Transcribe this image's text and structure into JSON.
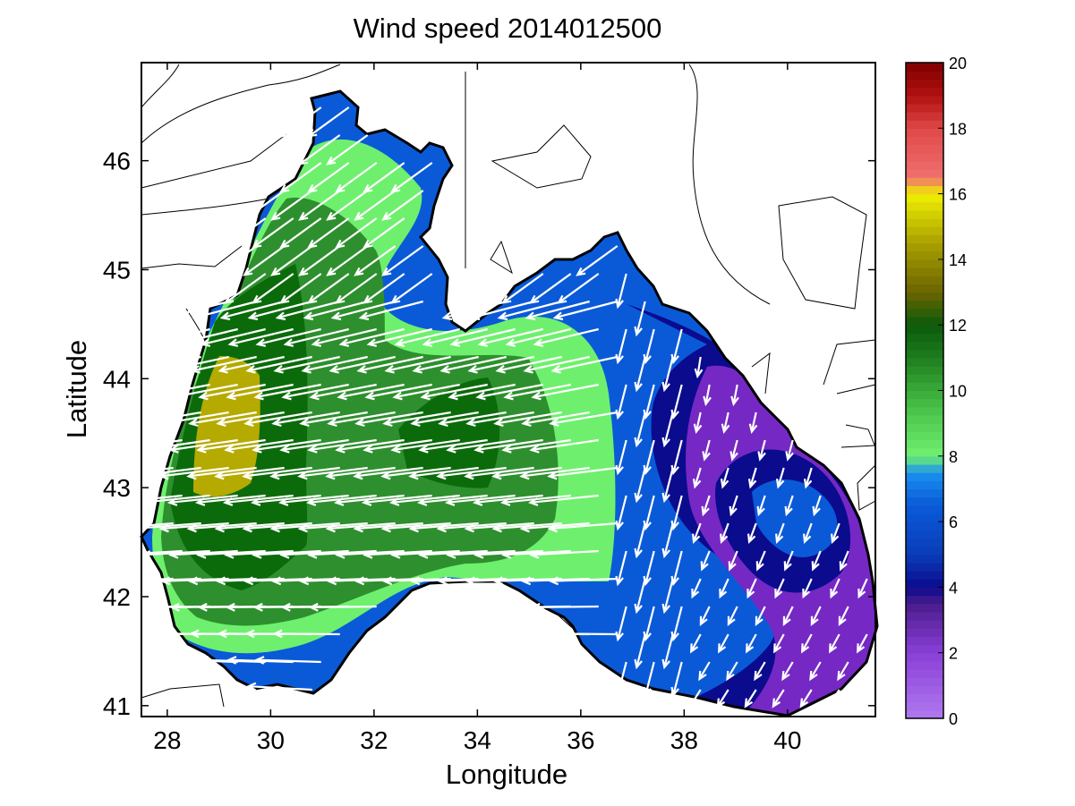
{
  "chart_data": {
    "type": "heatmap",
    "subtype": "filled contour map with wind vectors",
    "title": "Wind speed 2014012500",
    "xlabel": "Longitude",
    "ylabel": "Latitude",
    "xlim": [
      27.5,
      41.7
    ],
    "ylim": [
      40.9,
      46.9
    ],
    "xticks": [
      "28",
      "30",
      "32",
      "34",
      "36",
      "38",
      "40"
    ],
    "yticks": [
      "41",
      "42",
      "43",
      "44",
      "45",
      "46"
    ],
    "colorbar": {
      "range": [
        0,
        20
      ],
      "ticks": [
        "0",
        "2",
        "4",
        "6",
        "8",
        "10",
        "12",
        "14",
        "16",
        "18",
        "20"
      ],
      "bands": [
        {
          "from": 0,
          "to": 4,
          "color": "#7f2fc8"
        },
        {
          "from": 4,
          "to": 5,
          "color": "#0b0b8e"
        },
        {
          "from": 5,
          "to": 8,
          "color": "#0a5ad8"
        },
        {
          "from": 8,
          "to": 10,
          "color": "#6ef06e"
        },
        {
          "from": 10,
          "to": 12,
          "color": "#2e8f2e"
        },
        {
          "from": 12,
          "to": 14,
          "color": "#7f7a00"
        },
        {
          "from": 14,
          "to": 16,
          "color": "#b5ad00"
        },
        {
          "from": 16,
          "to": 18,
          "color": "#f06060"
        },
        {
          "from": 18,
          "to": 20,
          "color": "#a00000"
        }
      ]
    },
    "contour_regions": [
      {
        "level": 3,
        "color": "#7628c4",
        "area": "eastern basin (approx. 38.5–41.5 E, 41–44 N)"
      },
      {
        "level": 4,
        "color": "#0b0b8e",
        "area": "ring around eastern minimum"
      },
      {
        "level": 6,
        "color": "#0a5ad8",
        "area": "coastal fringe and central-eastern sea"
      },
      {
        "level": 8,
        "color": "#6ef06e",
        "area": "north-western shelf and central band"
      },
      {
        "level": 10,
        "color": "#2e8f2e",
        "area": "western and central core"
      },
      {
        "level": 11,
        "color": "#0b6b0b",
        "area": "western core near 29–30.5 E"
      },
      {
        "level": 13,
        "color": "#b5aa00",
        "area": "peak near 29 E, 43.5 N"
      }
    ],
    "wind_vectors_direction": "predominantly from east/north-east toward west/south-west",
    "grid": false,
    "colors": {
      "land": "#ffffff",
      "coastline": "#000000",
      "vectors": "#ffffff"
    }
  }
}
